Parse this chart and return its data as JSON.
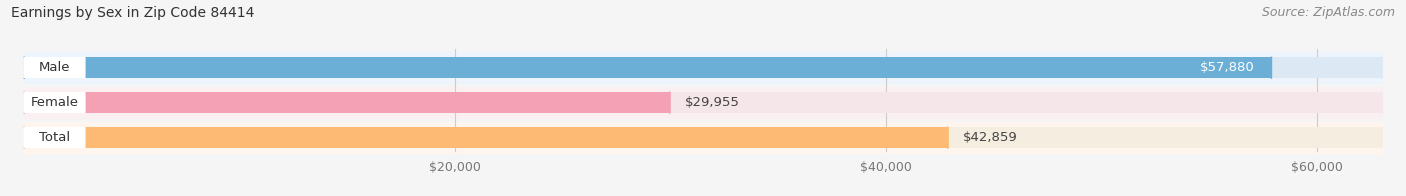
{
  "title": "Earnings by Sex in Zip Code 84414",
  "source": "Source: ZipAtlas.com",
  "categories": [
    "Male",
    "Female",
    "Total"
  ],
  "values": [
    57880,
    29955,
    42859
  ],
  "bar_colors": [
    "#6baed6",
    "#f4a0b5",
    "#fdba74"
  ],
  "bar_bg_colors": [
    "#dce9f5",
    "#f5e6ea",
    "#f5ede0"
  ],
  "row_bg_colors": [
    "#eef4fb",
    "#faf0f2",
    "#fdf5ee"
  ],
  "x_min": 0,
  "x_max": 63000,
  "xticks": [
    20000,
    40000,
    60000
  ],
  "xtick_labels": [
    "$20,000",
    "$40,000",
    "$60,000"
  ],
  "value_labels": [
    "$57,880",
    "$29,955",
    "$42,859"
  ],
  "title_fontsize": 10,
  "source_fontsize": 9,
  "tick_fontsize": 9,
  "bar_label_fontsize": 9.5,
  "cat_label_fontsize": 9.5,
  "background_color": "#f5f5f5",
  "bar_height": 0.62,
  "label_inside_threshold": 0.75
}
